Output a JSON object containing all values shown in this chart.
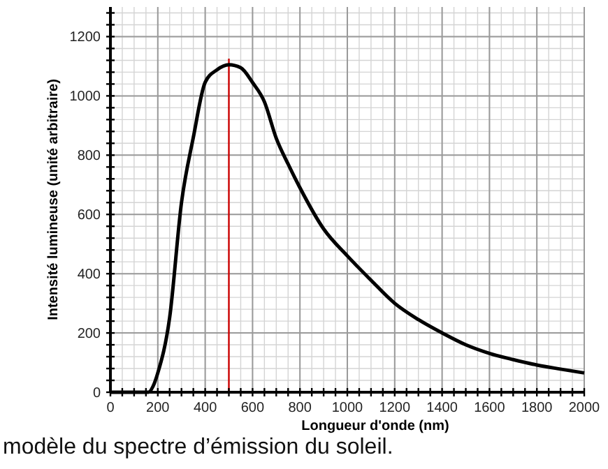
{
  "chart_data": {
    "type": "line",
    "xlabel": "Longueur d'onde (nm)",
    "ylabel": "Intensité lumineuse (unité arbitraire)",
    "annotations": [
      "modèle du spectre d’émission du soleil."
    ],
    "x": [
      0,
      100,
      160,
      180,
      200,
      250,
      300,
      350,
      400,
      450,
      500,
      550,
      600,
      650,
      700,
      750,
      800,
      900,
      1000,
      1100,
      1200,
      1300,
      1400,
      1500,
      1600,
      1700,
      1800,
      1900,
      2000
    ],
    "series": [
      {
        "color": "#000000",
        "values": [
          0,
          0,
          0,
          20,
          65,
          252,
          640,
          860,
          1046,
          1088,
          1105,
          1095,
          1045,
          980,
          857,
          770,
          690,
          551,
          460,
          378,
          300,
          245,
          200,
          160,
          131,
          110,
          92,
          78,
          65
        ]
      }
    ],
    "xlim": [
      0,
      2000
    ],
    "ylim": [
      0,
      1300
    ],
    "xticks": [
      0,
      200,
      400,
      600,
      800,
      1000,
      1200,
      1400,
      1600,
      1800,
      2000
    ],
    "yticks": [
      0,
      200,
      400,
      600,
      800,
      1000,
      1200
    ],
    "grid": true,
    "marker": "none",
    "line_style": "solid",
    "ref_lines": [
      {
        "axis": "x",
        "value": 500,
        "color": "#cc0000"
      }
    ]
  }
}
